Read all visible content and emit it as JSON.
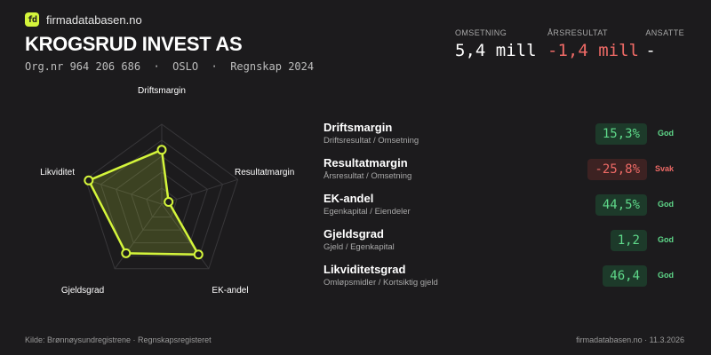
{
  "brand": {
    "name": "firmadatabasen.no",
    "logo_text": "fd",
    "logo_color": "#d4f53b"
  },
  "company": {
    "name": "KROGSRUD INVEST AS",
    "subinfo": "Org.nr 964 206 686  ·  OSLO  ·  Regnskap 2024"
  },
  "kpis": [
    {
      "label": "OMSETNING",
      "value": "5,4 mill",
      "negative": false
    },
    {
      "label": "ÅRSRESULTAT",
      "value": "-1,4 mill",
      "negative": true
    },
    {
      "label": "ANSATTE",
      "value": "-",
      "negative": false
    }
  ],
  "chart_data": {
    "type": "radar",
    "axes": [
      "Driftsmargin",
      "Resultatmargin",
      "EK-andel",
      "Gjeldsgrad",
      "Likviditet"
    ],
    "values": [
      0.68,
      0.09,
      0.78,
      0.76,
      0.96
    ],
    "grid_levels": 5,
    "range": [
      0,
      1
    ],
    "color": "#d4f53b"
  },
  "metrics": [
    {
      "name": "Driftsmargin",
      "desc": "Driftsresultat / Omsetning",
      "value": "15,3%",
      "rating": "God",
      "status": "good"
    },
    {
      "name": "Resultatmargin",
      "desc": "Årsresultat / Omsetning",
      "value": "-25,8%",
      "rating": "Svak",
      "status": "bad"
    },
    {
      "name": "EK-andel",
      "desc": "Egenkapital / Eiendeler",
      "value": "44,5%",
      "rating": "God",
      "status": "good"
    },
    {
      "name": "Gjeldsgrad",
      "desc": "Gjeld / Egenkapital",
      "value": "1,2",
      "rating": "God",
      "status": "good"
    },
    {
      "name": "Likviditetsgrad",
      "desc": "Omløpsmidler / Kortsiktig gjeld",
      "value": "46,4",
      "rating": "God",
      "status": "good"
    }
  ],
  "footer": {
    "source": "Kilde: Brønnøysundregistrene · Regnskapsregisteret",
    "site_date": "firmadatabasen.no · 11.3.2026"
  }
}
